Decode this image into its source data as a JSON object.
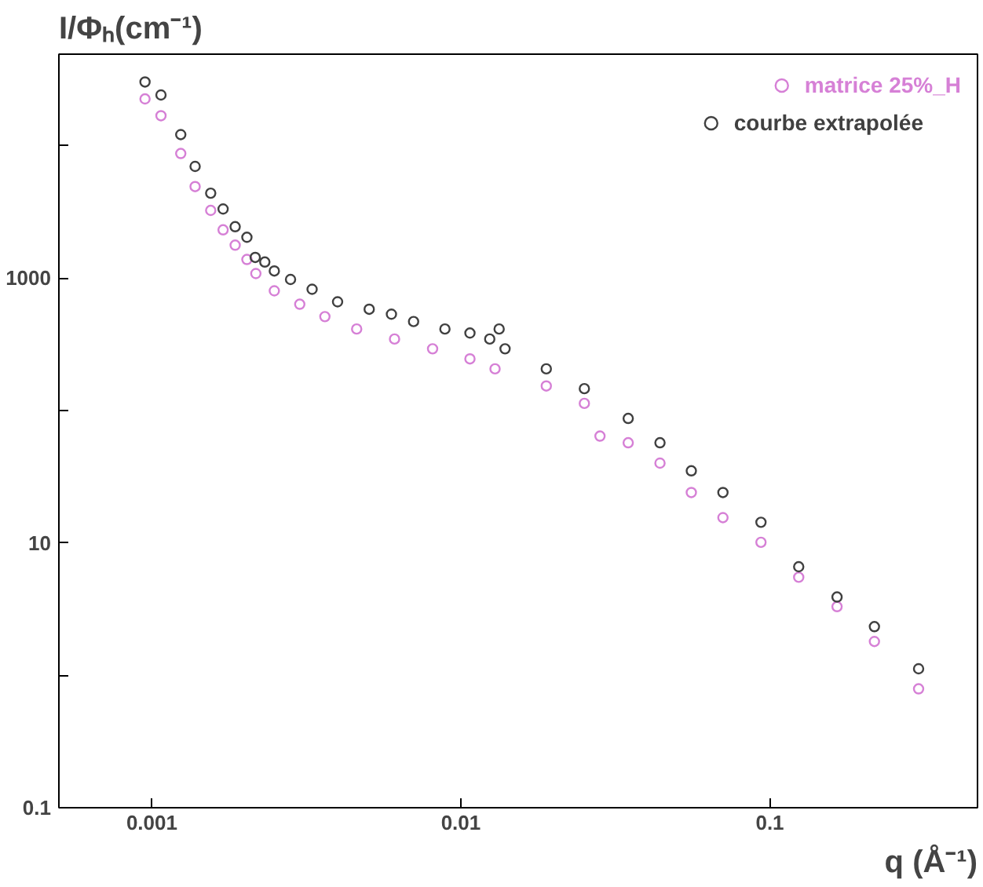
{
  "chart_data": {
    "type": "scatter",
    "xlabel": "q (Å⁻¹)",
    "ylabel": "I/Φₕ(cm⁻¹)",
    "log": "xy",
    "grid": false,
    "legend": "top right",
    "marker": "circle",
    "xlim": [
      0.0005,
      0.47
    ],
    "ylim": [
      0.1,
      49000
    ],
    "xticks": [
      0.001,
      0.01,
      0.1
    ],
    "yticks": [
      0.1,
      {
        "value": 1,
        "label": null
      },
      10,
      {
        "value": 100,
        "label": null
      },
      1000,
      {
        "value": 10000,
        "label": null
      }
    ],
    "series": [
      {
        "name": "matrice 25%_H",
        "color": "#d680d6",
        "x": [
          0.00095,
          0.00107,
          0.00124,
          0.00138,
          0.00155,
          0.0017,
          0.00186,
          0.00203,
          0.00217,
          0.00249,
          0.00301,
          0.00363,
          0.0046,
          0.0061,
          0.0081,
          0.0107,
          0.0129,
          0.0189,
          0.0251,
          0.0282,
          0.0348,
          0.0441,
          0.0557,
          0.0705,
          0.0936,
          0.124,
          0.165,
          0.218,
          0.303
        ],
        "values": [
          22500,
          16800,
          8710,
          4900,
          3240,
          2310,
          1770,
          1380,
          1080,
          800,
          634,
          511,
          412,
          346,
          292,
          245,
          206,
          153,
          113,
          64,
          57,
          40,
          24,
          15.5,
          10.1,
          5.5,
          3.3,
          1.8,
          0.79
        ]
      },
      {
        "name": "courbe extrapolée",
        "color": "#404040",
        "x": [
          0.00095,
          0.00107,
          0.00124,
          0.00138,
          0.00155,
          0.0017,
          0.00186,
          0.00203,
          0.00216,
          0.00232,
          0.00249,
          0.00281,
          0.0033,
          0.00399,
          0.00505,
          0.00596,
          0.00703,
          0.00888,
          0.0107,
          0.0124,
          0.0133,
          0.0139,
          0.0189,
          0.0251,
          0.0348,
          0.0441,
          0.0557,
          0.0705,
          0.0936,
          0.124,
          0.165,
          0.218,
          0.303
        ],
        "values": [
          30200,
          24100,
          12100,
          6960,
          4370,
          3320,
          2440,
          2030,
          1430,
          1320,
          1130,
          975,
          822,
          661,
          581,
          533,
          469,
          412,
          384,
          346,
          412,
          292,
          206,
          146,
          87,
          57,
          35,
          24,
          14.3,
          6.6,
          3.9,
          2.33,
          1.12
        ]
      }
    ]
  }
}
